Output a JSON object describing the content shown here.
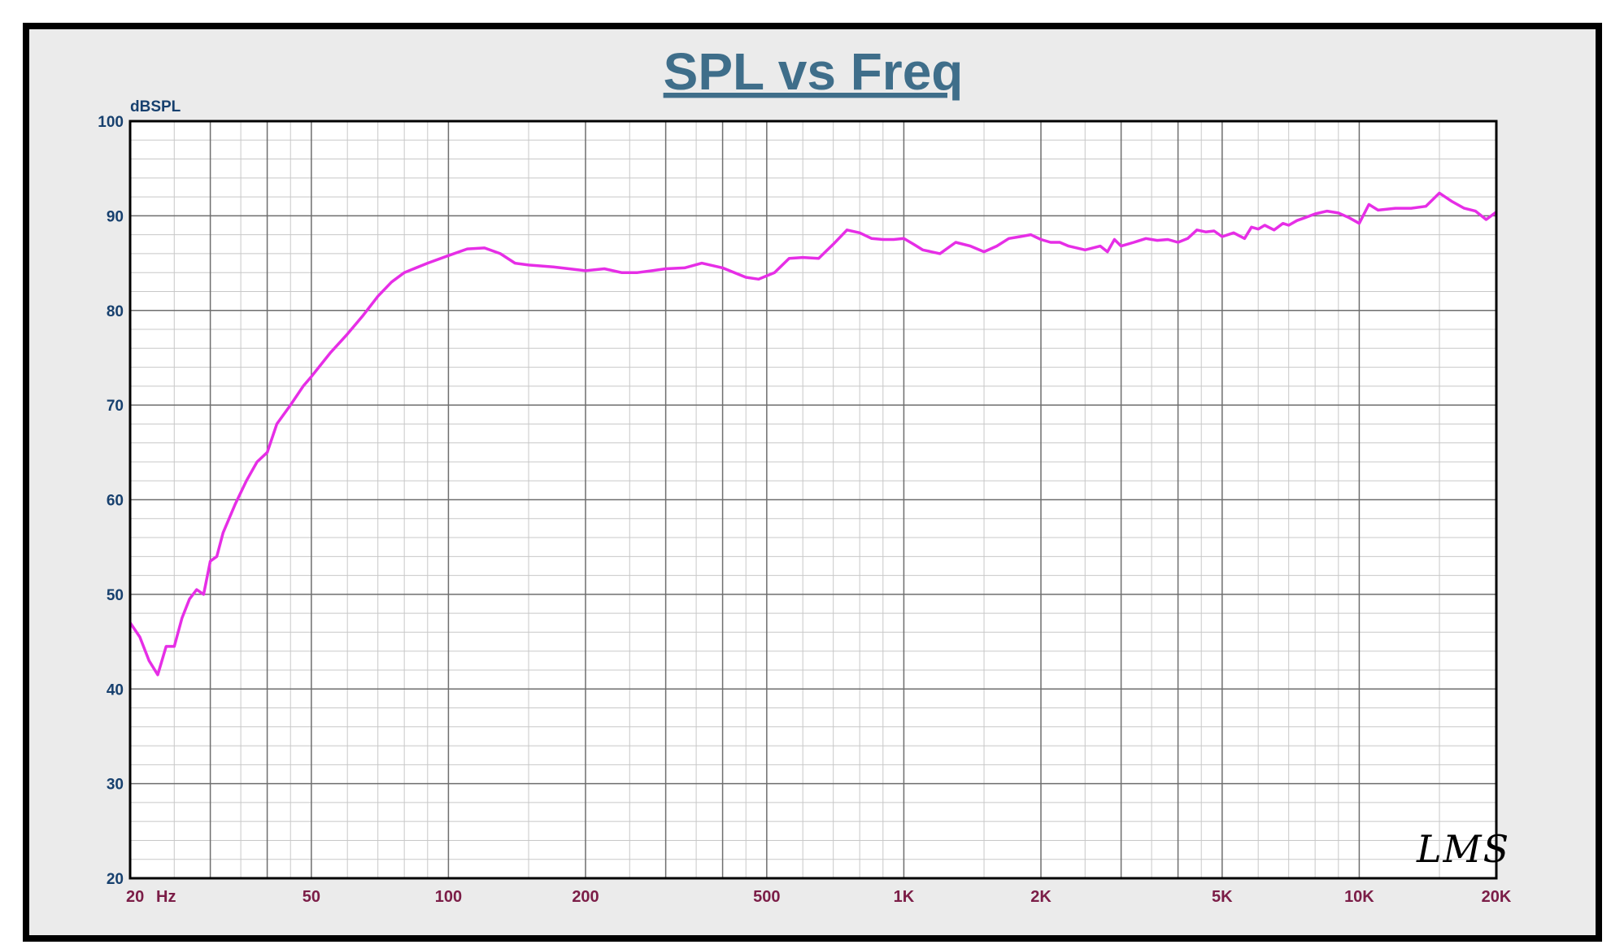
{
  "colors": {
    "frame_border": "#000000",
    "frame_bg": "#ebebeb",
    "plot_bg": "#ffffff",
    "title": "#3f6e8a",
    "y_labels": "#17406e",
    "x_labels": "#7b1d47",
    "curve": "#e62ee6",
    "major_grid": "#6e6e6e",
    "minor_grid": "#c8c8c8"
  },
  "watermark": "LMS",
  "chart_data": {
    "type": "line",
    "title": "SPL vs Freq",
    "ylabel": "dBSPL",
    "xlabel": "Hz",
    "x_scale": "log",
    "xlim": [
      20,
      20000
    ],
    "ylim": [
      20,
      100
    ],
    "y_ticks": [
      20,
      30,
      40,
      50,
      60,
      70,
      80,
      90,
      100
    ],
    "x_ticks": [
      {
        "value": 20,
        "label": "20"
      },
      {
        "value": 50,
        "label": "50"
      },
      {
        "value": 100,
        "label": "100"
      },
      {
        "value": 200,
        "label": "200"
      },
      {
        "value": 500,
        "label": "500"
      },
      {
        "value": 1000,
        "label": "1K"
      },
      {
        "value": 2000,
        "label": "2K"
      },
      {
        "value": 5000,
        "label": "5K"
      },
      {
        "value": 10000,
        "label": "10K"
      },
      {
        "value": 20000,
        "label": "20K"
      }
    ],
    "grid": true,
    "legend": "none",
    "series": [
      {
        "x": [
          20,
          21,
          22,
          23,
          24,
          25,
          26,
          27,
          28,
          29,
          30,
          31,
          32,
          34,
          36,
          38,
          40,
          42,
          45,
          48,
          50,
          55,
          60,
          65,
          70,
          75,
          80,
          90,
          100,
          110,
          120,
          130,
          140,
          150,
          170,
          200,
          220,
          240,
          260,
          280,
          300,
          330,
          360,
          400,
          450,
          480,
          520,
          560,
          600,
          650,
          700,
          750,
          800,
          850,
          900,
          950,
          1000,
          1050,
          1100,
          1200,
          1300,
          1400,
          1500,
          1600,
          1700,
          1800,
          1900,
          2000,
          2100,
          2200,
          2300,
          2500,
          2700,
          2800,
          2900,
          3000,
          3200,
          3400,
          3600,
          3800,
          4000,
          4200,
          4400,
          4600,
          4800,
          5000,
          5300,
          5600,
          5800,
          6000,
          6200,
          6500,
          6800,
          7000,
          7300,
          7600,
          8000,
          8500,
          9000,
          9500,
          10000,
          10500,
          11000,
          12000,
          13000,
          14000,
          15000,
          16000,
          17000,
          18000,
          19000,
          20000
        ],
        "y": [
          47,
          45.5,
          43,
          41.5,
          44.5,
          44.5,
          47.5,
          49.5,
          50.5,
          50,
          53.5,
          54,
          56.5,
          59.5,
          62,
          64,
          65,
          68,
          70,
          72,
          73,
          75.5,
          77.5,
          79.5,
          81.5,
          83,
          84,
          85,
          85.8,
          86.5,
          86.6,
          86,
          85,
          84.8,
          84.6,
          84.2,
          84.4,
          84,
          84,
          84.2,
          84.4,
          84.5,
          85,
          84.5,
          83.5,
          83.3,
          84,
          85.5,
          85.6,
          85.5,
          87,
          88.5,
          88.2,
          87.6,
          87.5,
          87.5,
          87.6,
          87,
          86.4,
          86,
          87.2,
          86.8,
          86.2,
          86.8,
          87.6,
          87.8,
          88,
          87.5,
          87.2,
          87.2,
          86.8,
          86.4,
          86.8,
          86.2,
          87.5,
          86.8,
          87.2,
          87.6,
          87.4,
          87.5,
          87.2,
          87.6,
          88.5,
          88.3,
          88.4,
          87.8,
          88.2,
          87.6,
          88.8,
          88.6,
          89,
          88.5,
          89.2,
          89,
          89.5,
          89.8,
          90.2,
          90.5,
          90.3,
          89.8,
          89.2,
          91.2,
          90.6,
          90.8,
          90.8,
          91,
          92.4,
          91.5,
          90.8,
          90.5,
          89.6,
          90.4
        ]
      }
    ]
  }
}
